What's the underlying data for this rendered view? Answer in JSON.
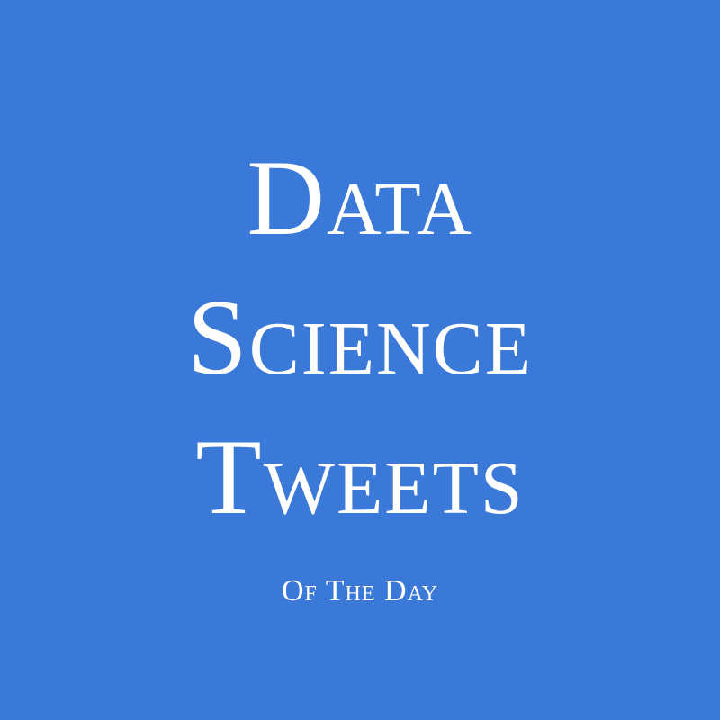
{
  "colors": {
    "background": "#3b79d8",
    "text": "#ffffff"
  },
  "title": {
    "line1": "Data",
    "line2": "Science",
    "line3": "Tweets"
  },
  "subtitle": "Of The Day"
}
